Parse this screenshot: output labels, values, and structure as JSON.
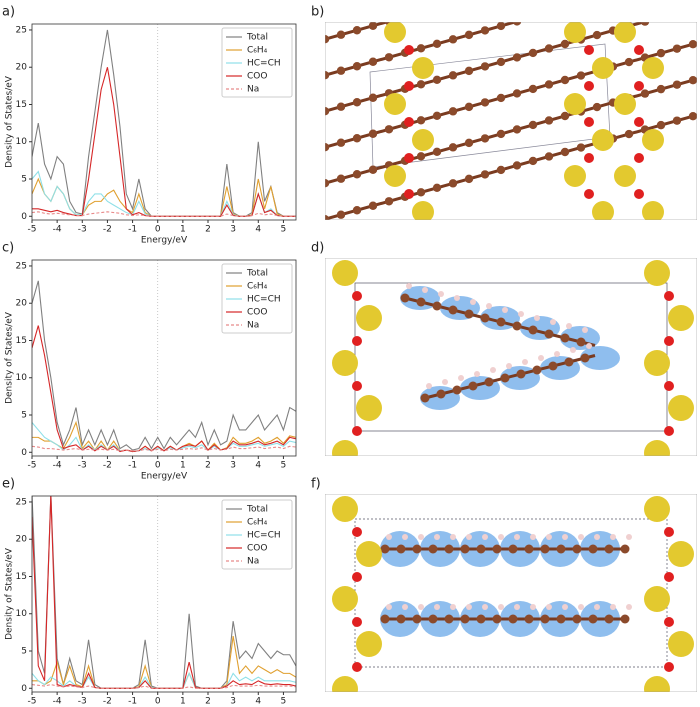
{
  "chart_data": [
    {
      "type": "line",
      "panel_label": "a)",
      "xlabel": "Energy/eV",
      "ylabel": "Density of States/eV",
      "xlim": [
        -5,
        5.5
      ],
      "ylim": [
        -0.5,
        25.8
      ],
      "xticks": [
        -5,
        -4,
        -3,
        -2,
        -1,
        0,
        1,
        2,
        3,
        4,
        5
      ],
      "yticks": [
        0,
        5,
        10,
        15,
        20,
        25
      ],
      "legend": "upper right",
      "x": [
        -5,
        -4.75,
        -4.5,
        -4.25,
        -4,
        -3.75,
        -3.5,
        -3.25,
        -3,
        -2.75,
        -2.5,
        -2.25,
        -2,
        -1.75,
        -1.5,
        -1.25,
        -1,
        -0.75,
        -0.5,
        -0.25,
        0,
        0.25,
        0.5,
        0.75,
        1,
        1.25,
        1.5,
        1.75,
        2,
        2.25,
        2.5,
        2.75,
        3,
        3.25,
        3.5,
        3.75,
        4,
        4.25,
        4.5,
        4.75,
        5,
        5.25,
        5.5
      ],
      "series": [
        {
          "name": "Total",
          "color": "#808080",
          "values": [
            8,
            12.5,
            7,
            5,
            8,
            7,
            2,
            0.5,
            0.3,
            8,
            14,
            20,
            25,
            19,
            12,
            3,
            1,
            5,
            1,
            0,
            0,
            0,
            0,
            0,
            0,
            0,
            0,
            0,
            0,
            0,
            0,
            7,
            0.5,
            0,
            0,
            0.5,
            10,
            2,
            4,
            0.5,
            0,
            0,
            0
          ]
        },
        {
          "name": "C₆H₄",
          "color": "#e0a030",
          "values": [
            3,
            5,
            3,
            2,
            4,
            3,
            1,
            0.2,
            0.2,
            1.5,
            2,
            2,
            3,
            3.5,
            2,
            1,
            0.5,
            3,
            0.5,
            0,
            0,
            0,
            0,
            0,
            0,
            0,
            0,
            0,
            0,
            0,
            0,
            4,
            0.3,
            0,
            0,
            0.2,
            5,
            1,
            4,
            0.3,
            0,
            0,
            0
          ]
        },
        {
          "name": "HC=CH",
          "color": "#8fe0e8",
          "values": [
            5,
            6,
            3,
            2,
            4,
            3,
            1,
            0.2,
            0.2,
            2,
            3,
            3,
            2,
            1.5,
            1,
            0.5,
            0.2,
            2,
            0.3,
            0,
            0,
            0,
            0,
            0,
            0,
            0,
            0,
            0,
            0,
            0,
            0,
            2,
            0.2,
            0,
            0,
            0.1,
            3,
            0.5,
            1,
            0.1,
            0,
            0,
            0
          ]
        },
        {
          "name": "COO",
          "color": "#d62728",
          "values": [
            1,
            1,
            0.8,
            0.6,
            0.8,
            0.5,
            0.3,
            0.1,
            0.1,
            5,
            11,
            17,
            20,
            15,
            8,
            1,
            0.2,
            0.5,
            0.1,
            0,
            0,
            0,
            0,
            0,
            0,
            0,
            0,
            0,
            0,
            0,
            0,
            1.5,
            0.1,
            0,
            0,
            0.1,
            3,
            0.5,
            0.8,
            0.1,
            0,
            0,
            0
          ]
        },
        {
          "name": "Na",
          "color": "#e88a8a",
          "dashed": true,
          "values": [
            0.5,
            0.6,
            0.4,
            0.3,
            0.4,
            0.3,
            0.2,
            0.1,
            0.1,
            0.3,
            0.4,
            0.5,
            0.6,
            0.5,
            0.4,
            0.2,
            0.1,
            0.2,
            0.1,
            0,
            0,
            0,
            0,
            0,
            0,
            0,
            0,
            0,
            0,
            0,
            0,
            0.3,
            0.1,
            0,
            0,
            0.1,
            0.4,
            0.2,
            0.3,
            0.1,
            0,
            0,
            0
          ]
        }
      ]
    },
    {
      "type": "line",
      "panel_label": "c)",
      "xlabel": "Energy/eV",
      "ylabel": "Density of States/eV",
      "xlim": [
        -5,
        5.5
      ],
      "ylim": [
        -0.5,
        25.8
      ],
      "xticks": [
        -5,
        -4,
        -3,
        -2,
        -1,
        0,
        1,
        2,
        3,
        4,
        5
      ],
      "yticks": [
        0,
        5,
        10,
        15,
        20,
        25
      ],
      "legend": "upper right",
      "x": [
        -5,
        -4.75,
        -4.5,
        -4.25,
        -4,
        -3.75,
        -3.5,
        -3.25,
        -3,
        -2.75,
        -2.5,
        -2.25,
        -2,
        -1.75,
        -1.5,
        -1.25,
        -1,
        -0.75,
        -0.5,
        -0.25,
        0,
        0.25,
        0.5,
        0.75,
        1,
        1.25,
        1.5,
        1.75,
        2,
        2.25,
        2.5,
        2.75,
        3,
        3.25,
        3.5,
        3.75,
        4,
        4.25,
        4.5,
        4.75,
        5,
        5.25,
        5.5
      ],
      "series": [
        {
          "name": "Total",
          "color": "#808080",
          "values": [
            20,
            23,
            15,
            10,
            4,
            1,
            3,
            6,
            1,
            3,
            1,
            3,
            1,
            3,
            0.5,
            1,
            0.3,
            0.5,
            2,
            0.5,
            2,
            0.5,
            2,
            1,
            2,
            3,
            2,
            4,
            1,
            3,
            1,
            1.5,
            5,
            3,
            3,
            4,
            5,
            3,
            4,
            5,
            3,
            6,
            5.5
          ]
        },
        {
          "name": "C₆H₄",
          "color": "#e0a030",
          "values": [
            2,
            2,
            1.5,
            1.5,
            1,
            0.5,
            2,
            4,
            0.5,
            1.5,
            0.3,
            1.5,
            0.3,
            1.5,
            0.2,
            0.3,
            0.1,
            0.2,
            0.8,
            0.2,
            0.8,
            0.2,
            0.8,
            0.3,
            0.8,
            1.2,
            0.8,
            1.5,
            0.3,
            1.2,
            0.3,
            0.6,
            2,
            1.2,
            1.2,
            1.5,
            2,
            1.2,
            1.5,
            2,
            1.2,
            2.2,
            2
          ]
        },
        {
          "name": "HC=CH",
          "color": "#8fe0e8",
          "values": [
            4,
            3,
            2,
            1.5,
            1,
            0.3,
            1,
            2,
            0.3,
            1,
            0.3,
            1,
            0.3,
            1,
            0.2,
            0.3,
            0.1,
            0.2,
            0.5,
            0.2,
            0.6,
            0.2,
            0.6,
            0.3,
            0.6,
            0.8,
            0.6,
            1,
            0.3,
            0.8,
            0.3,
            0.5,
            1.2,
            0.8,
            0.8,
            1,
            1.2,
            0.8,
            1,
            1.2,
            0.8,
            1.5,
            1.3
          ]
        },
        {
          "name": "COO",
          "color": "#d62728",
          "values": [
            14,
            17,
            13,
            8,
            3,
            0.5,
            0.8,
            1,
            0.3,
            0.8,
            0.2,
            0.8,
            0.3,
            0.8,
            0.1,
            0.3,
            0.1,
            0.2,
            0.8,
            0.2,
            0.8,
            0.2,
            0.8,
            0.3,
            0.8,
            1,
            0.8,
            1.5,
            0.3,
            1,
            0.3,
            0.5,
            1.5,
            1,
            1,
            1.2,
            1.5,
            1,
            1.2,
            1.5,
            1,
            2,
            1.8
          ]
        },
        {
          "name": "Na",
          "color": "#e88a8a",
          "dashed": true,
          "values": [
            0.8,
            0.7,
            0.5,
            0.5,
            0.4,
            0.3,
            0.4,
            0.5,
            0.3,
            0.4,
            0.3,
            0.4,
            0.3,
            0.4,
            0.2,
            0.3,
            0.2,
            0.2,
            0.4,
            0.2,
            0.4,
            0.2,
            0.4,
            0.3,
            0.4,
            0.5,
            0.4,
            0.6,
            0.3,
            0.5,
            0.3,
            0.4,
            0.7,
            0.5,
            0.5,
            0.6,
            0.7,
            0.5,
            0.6,
            0.7,
            0.5,
            0.8,
            0.7
          ]
        }
      ]
    },
    {
      "type": "line",
      "panel_label": "e)",
      "xlabel": "Energy/eV",
      "ylabel": "Density of States/eV",
      "xlim": [
        -5,
        5.5
      ],
      "ylim": [
        -0.5,
        25.8
      ],
      "xticks": [
        -5,
        -4,
        -3,
        -2,
        -1,
        0,
        1,
        2,
        3,
        4,
        5
      ],
      "yticks": [
        0,
        5,
        10,
        15,
        20,
        25
      ],
      "legend": "upper right",
      "x": [
        -5,
        -4.75,
        -4.5,
        -4.25,
        -4,
        -3.75,
        -3.5,
        -3.25,
        -3,
        -2.75,
        -2.5,
        -2.25,
        -2,
        -1.75,
        -1.5,
        -1.25,
        -1,
        -0.75,
        -0.5,
        -0.25,
        0,
        0.25,
        0.5,
        0.75,
        1,
        1.25,
        1.5,
        1.75,
        2,
        2.25,
        2.5,
        2.75,
        3,
        3.25,
        3.5,
        3.75,
        4,
        4.25,
        4.5,
        4.75,
        5,
        5.25,
        5.5
      ],
      "series": [
        {
          "name": "Total",
          "color": "#808080",
          "values": [
            26,
            5,
            2,
            26,
            4,
            0.5,
            4,
            1,
            0.5,
            6.5,
            0.5,
            0,
            0,
            0,
            0,
            0,
            0,
            0.5,
            6.5,
            0.3,
            0,
            0,
            0,
            0,
            0,
            10,
            0.3,
            0,
            0,
            0,
            0,
            1,
            9,
            4,
            5,
            4,
            6,
            5,
            4,
            5,
            4.5,
            4.5,
            3
          ]
        },
        {
          "name": "C₆H₄",
          "color": "#e0a030",
          "values": [
            1,
            1,
            0.5,
            1,
            3.5,
            0.5,
            3,
            0.5,
            0.2,
            3,
            0.1,
            0,
            0,
            0,
            0,
            0,
            0,
            0.2,
            3,
            0.1,
            0,
            0,
            0,
            0,
            0,
            2,
            0.1,
            0,
            0,
            0,
            0,
            0.5,
            7,
            2,
            3,
            2,
            3,
            2.5,
            2,
            2.5,
            2,
            2,
            1.5
          ]
        },
        {
          "name": "HC=CH",
          "color": "#8fe0e8",
          "values": [
            2,
            1,
            0.5,
            1.5,
            1,
            0.3,
            1,
            0.3,
            0.1,
            1.5,
            0.1,
            0,
            0,
            0,
            0,
            0,
            0,
            0.1,
            1.5,
            0.1,
            0,
            0,
            0,
            0,
            0,
            2,
            0.1,
            0,
            0,
            0,
            0,
            0.3,
            2,
            1,
            1.5,
            1,
            1.5,
            1,
            1,
            1,
            1,
            1,
            0.8
          ]
        },
        {
          "name": "COO",
          "color": "#d62728",
          "values": [
            23,
            3,
            1,
            26,
            0.5,
            0.2,
            0.5,
            0.3,
            0.1,
            2,
            0.1,
            0,
            0,
            0,
            0,
            0,
            0,
            0.1,
            1,
            0,
            0,
            0,
            0,
            0,
            0,
            3.5,
            0.1,
            0,
            0,
            0,
            0,
            0.3,
            1,
            0.5,
            0.6,
            0.5,
            1,
            0.6,
            0.5,
            0.6,
            0.5,
            0.5,
            0.3
          ]
        },
        {
          "name": "Na",
          "color": "#e88a8a",
          "dashed": true,
          "values": [
            0.5,
            0.4,
            0.3,
            0.5,
            0.3,
            0.2,
            0.3,
            0.2,
            0.1,
            0.3,
            0.1,
            0,
            0,
            0,
            0,
            0,
            0,
            0.1,
            0.3,
            0,
            0,
            0,
            0,
            0,
            0,
            0.2,
            0,
            0,
            0,
            0,
            0,
            0.1,
            0.4,
            0.3,
            0.3,
            0.3,
            0.4,
            0.3,
            0.3,
            0.3,
            0.3,
            0.3,
            0.2
          ]
        }
      ]
    }
  ],
  "structures": [
    {
      "panel_label": "b)"
    },
    {
      "panel_label": "d)"
    },
    {
      "panel_label": "f)"
    }
  ]
}
